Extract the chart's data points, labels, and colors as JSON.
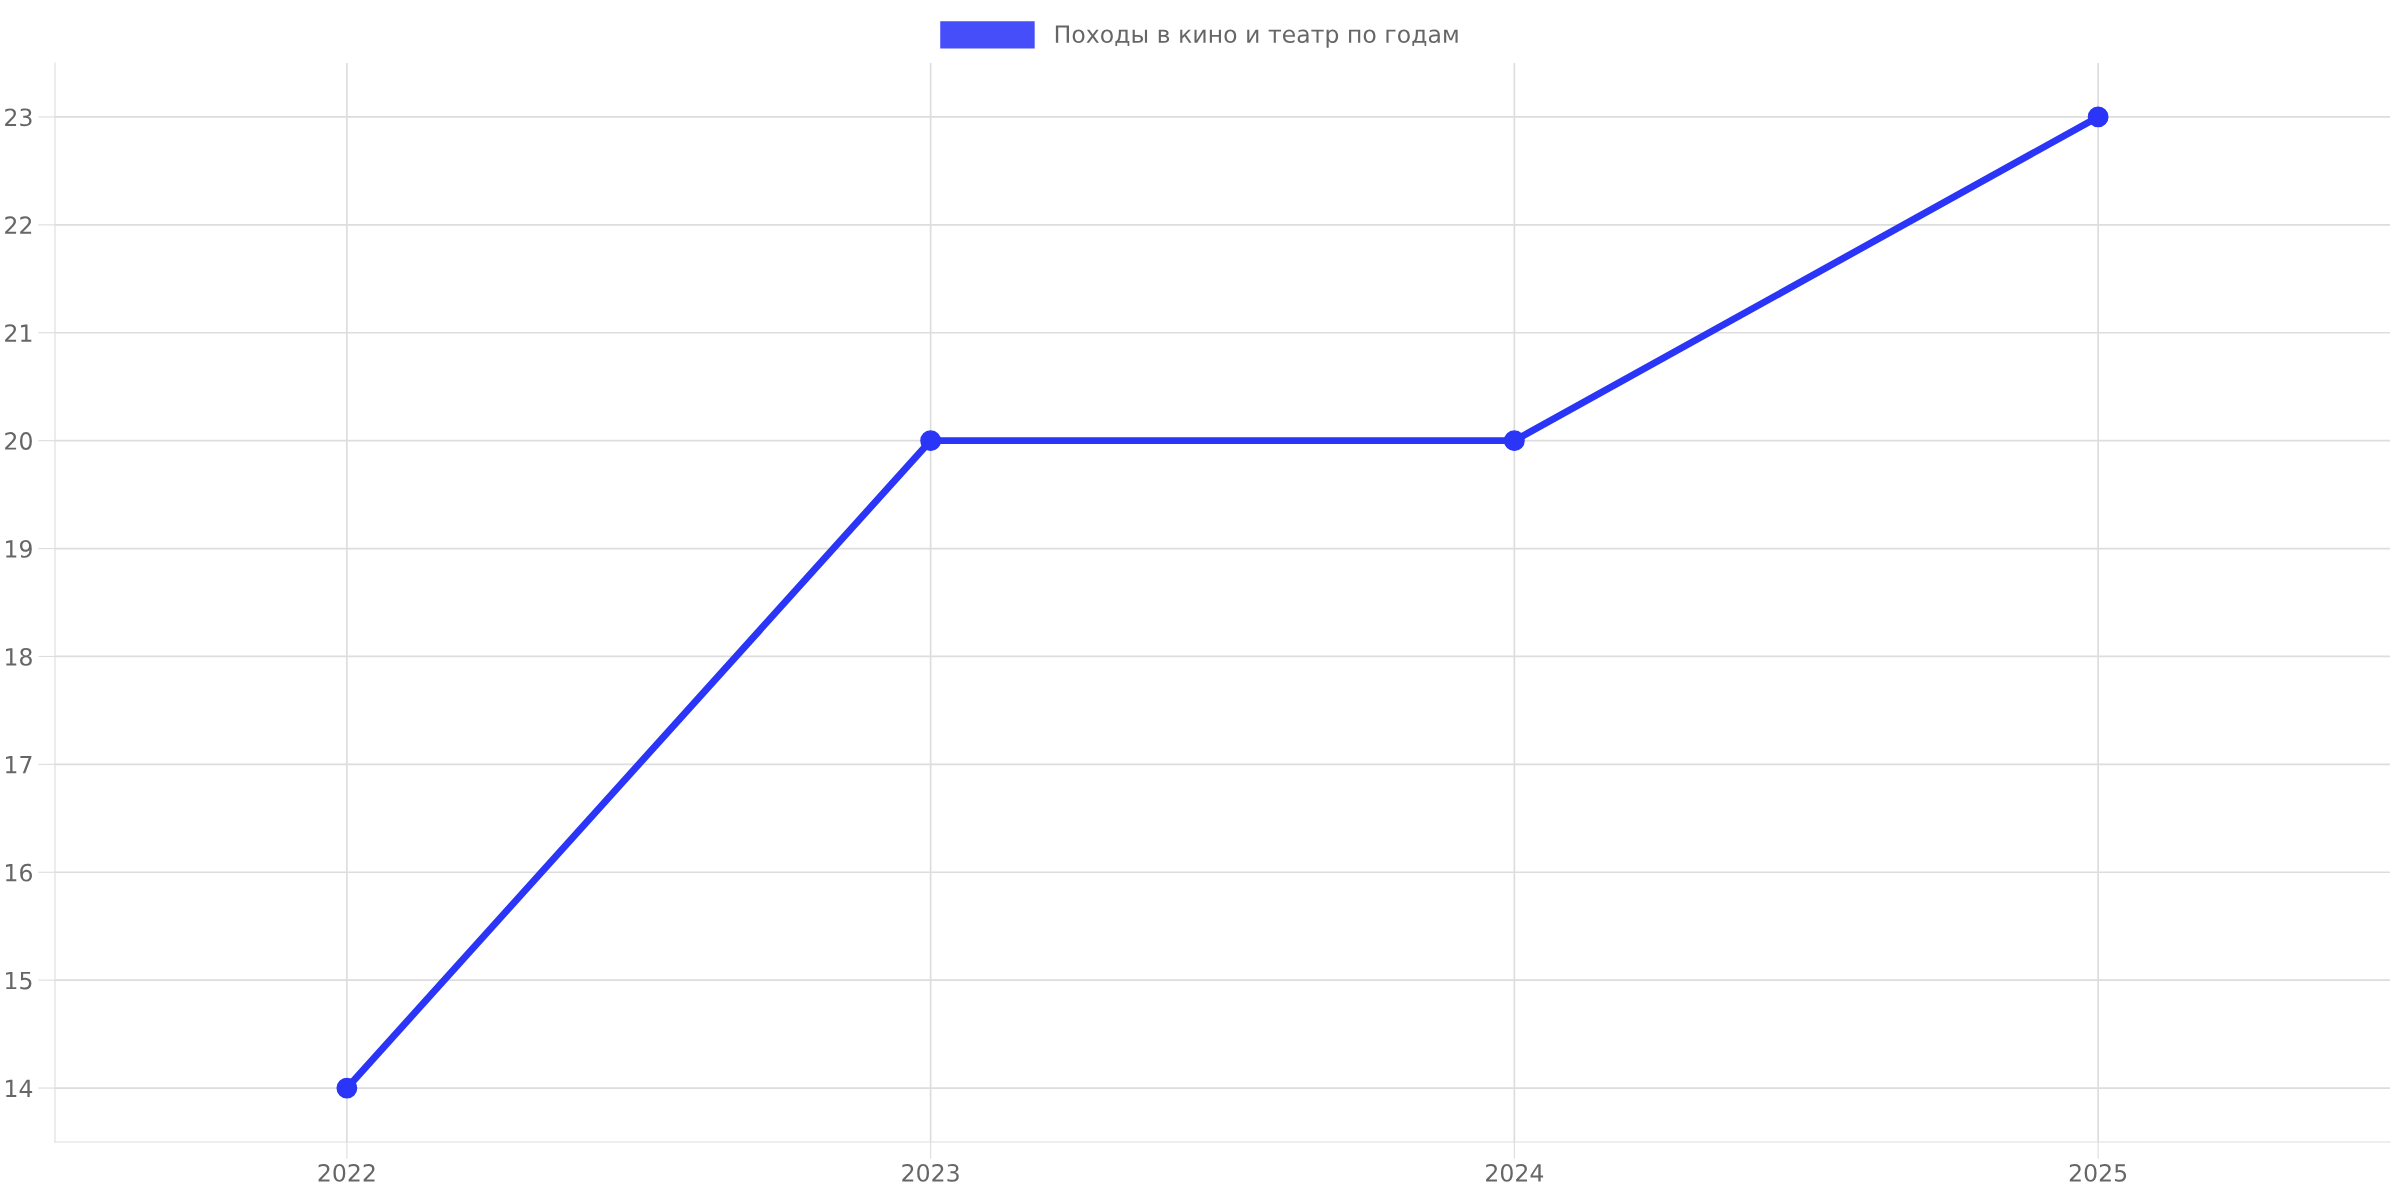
{
  "chart_data": {
    "type": "line",
    "categories": [
      "2022",
      "2023",
      "2024",
      "2025"
    ],
    "series": [
      {
        "name": "Походы в кино и театр по годам",
        "color": "#2b35f8",
        "values": [
          14,
          20,
          20,
          23
        ]
      }
    ],
    "ylim": [
      13.5,
      23.5
    ],
    "yticks": [
      14,
      15,
      16,
      17,
      18,
      19,
      20,
      21,
      22,
      23
    ],
    "grid": true,
    "legend": "top",
    "marker": "circle",
    "line_style": "solid"
  }
}
